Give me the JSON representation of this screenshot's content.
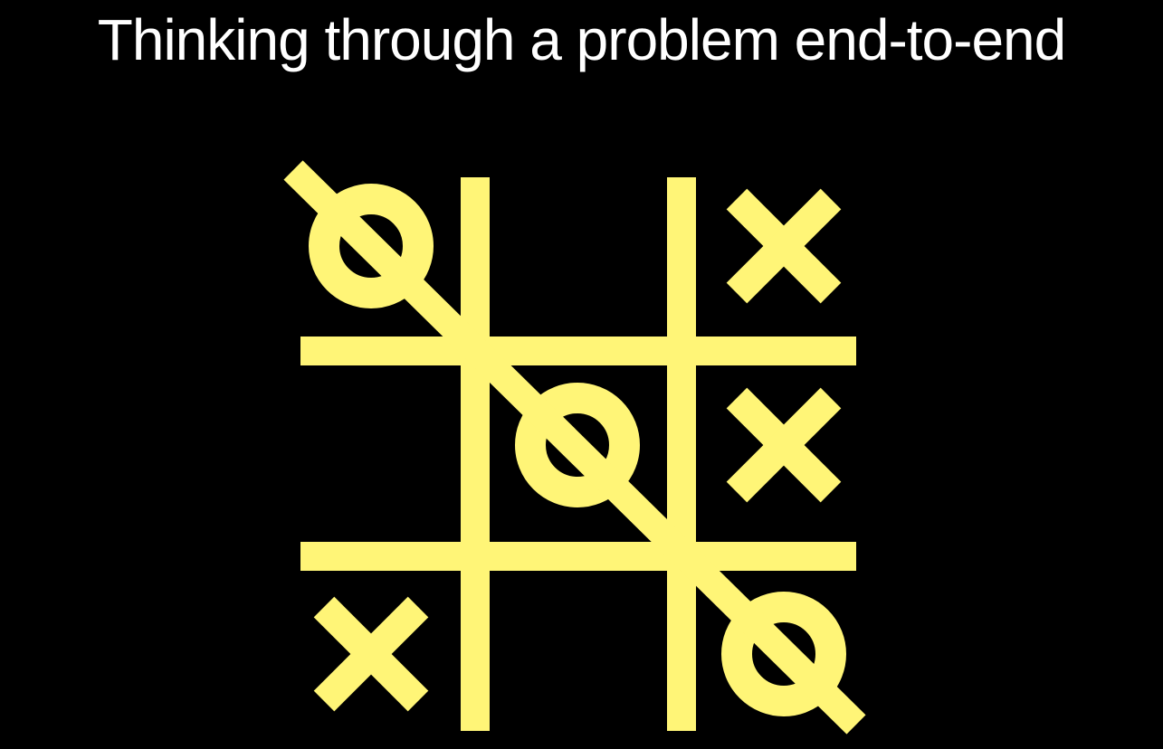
{
  "slide": {
    "title": "Thinking through a problem end-to-end"
  },
  "colors": {
    "background": "#000000",
    "title": "#ffffff",
    "marks": "#fff577"
  },
  "board": {
    "cells": [
      [
        "O",
        "",
        "X"
      ],
      [
        "",
        "O",
        "X"
      ],
      [
        "X",
        "",
        "O"
      ]
    ],
    "winning_line": "diagonal top-left to bottom-right"
  }
}
